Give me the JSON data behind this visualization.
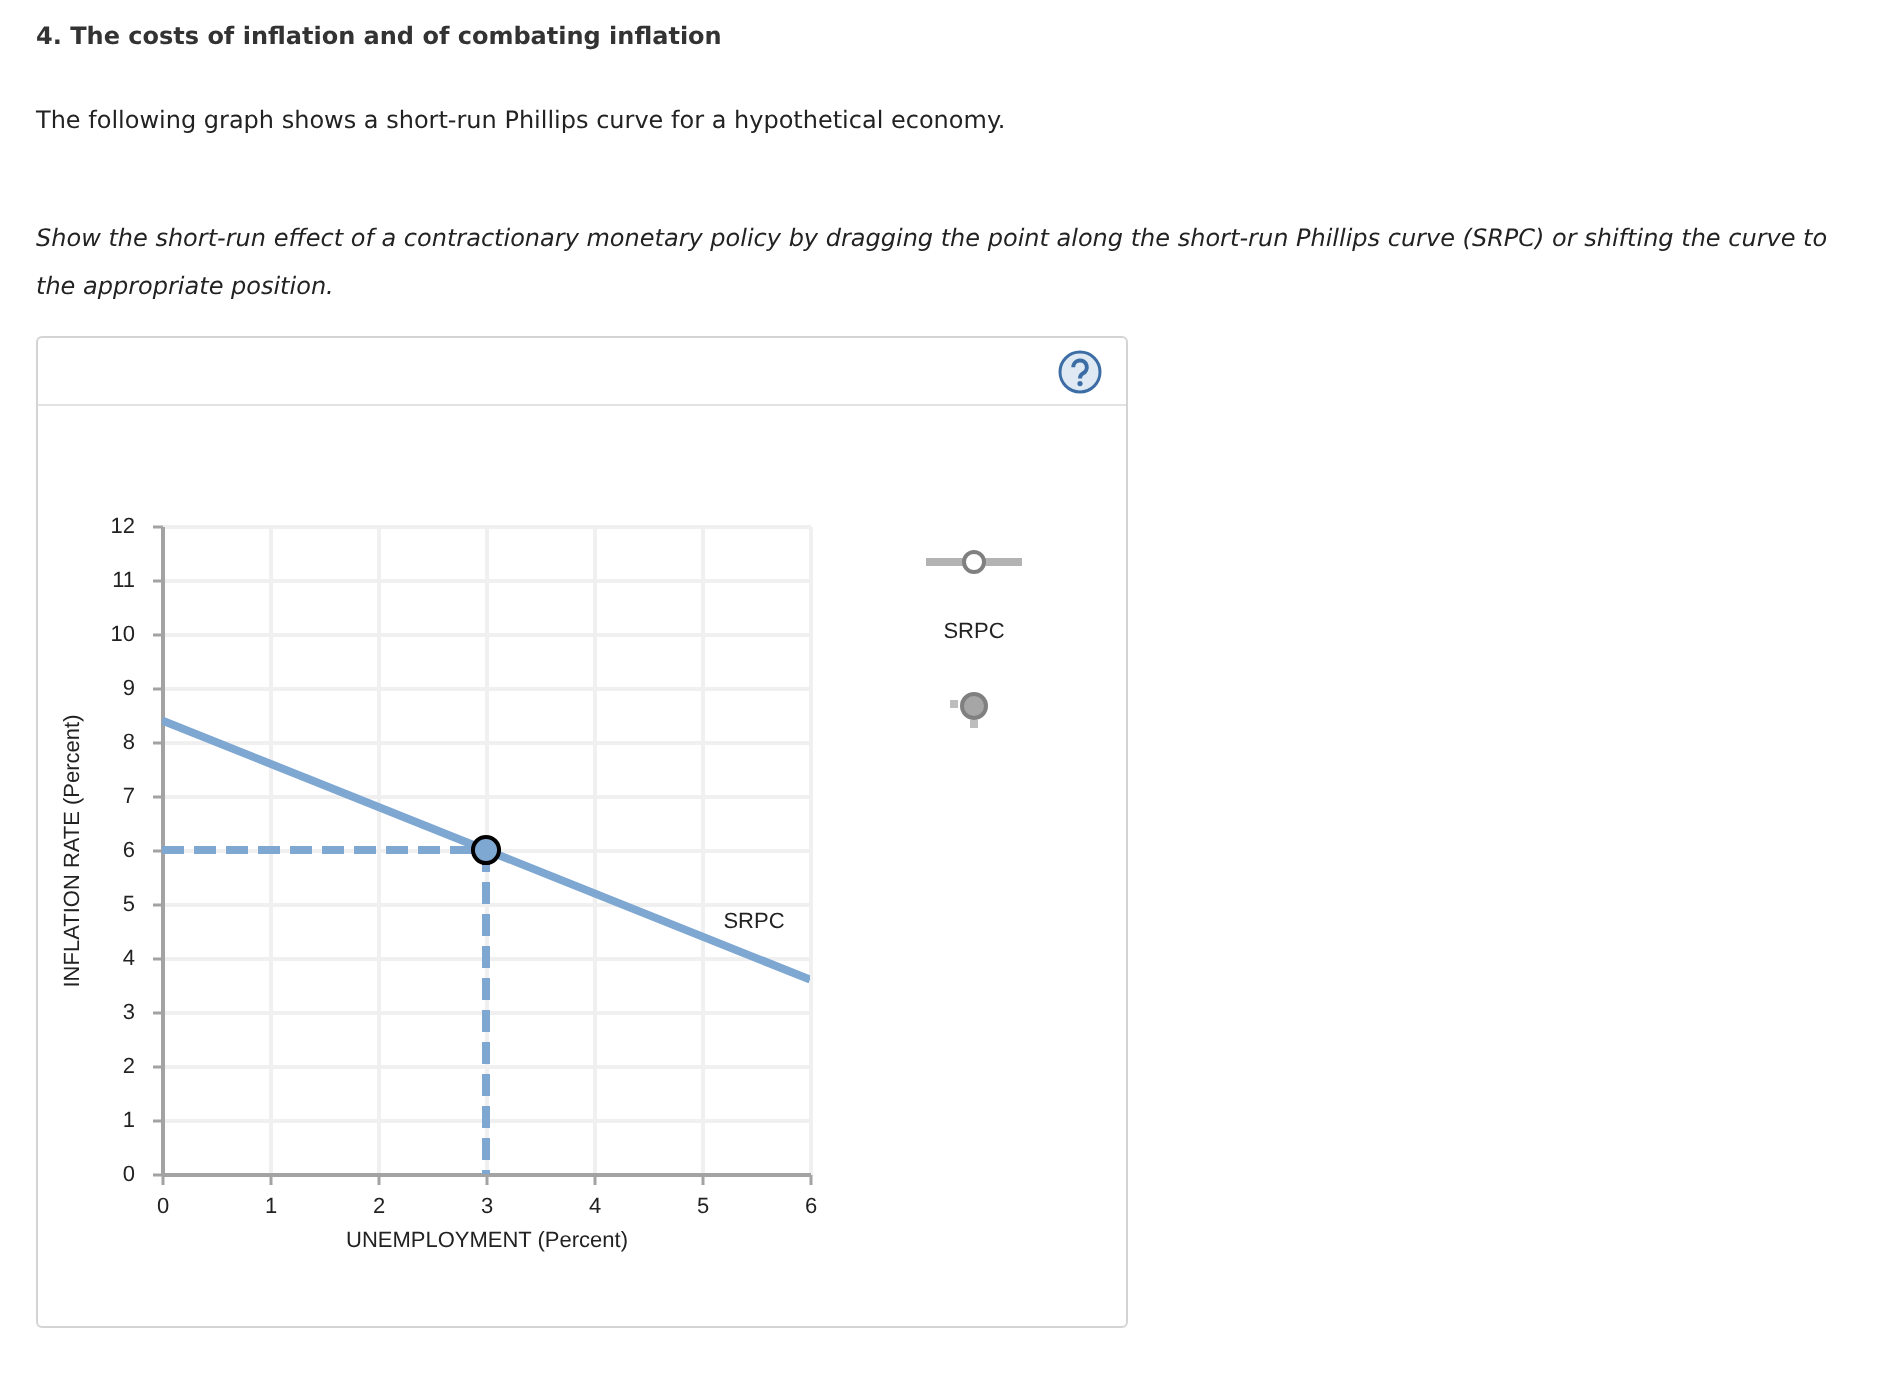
{
  "chart_data": {
    "type": "line",
    "title": "4. The costs of inflation and of combating inflation",
    "subtitle": "The following graph shows a short-run Phillips curve for a hypothetical economy.",
    "xlabel": "UNEMPLOYMENT (Percent)",
    "ylabel": "INFLATION RATE (Percent)",
    "annotations": [
      "Show the short-run effect of a contractionary monetary policy by dragging the point along the short-run Phillips curve (SRPC) or shifting the curve to the appropriate position.",
      "SRPC"
    ],
    "series": [
      {
        "name": "SRPC",
        "color": "#7ea7d2",
        "x": [
          0,
          6
        ],
        "values": [
          8.4,
          3.6
        ]
      },
      {
        "color": "#7ea7d2",
        "x": [
          0,
          3
        ],
        "values": [
          6,
          6
        ],
        "line_style": "dashed"
      },
      {
        "color": "#7ea7d2",
        "x": [
          3,
          3
        ],
        "values": [
          6,
          0
        ],
        "line_style": "dashed"
      },
      {
        "type": "scatter",
        "color": "#7ea7d2",
        "x": [
          3
        ],
        "values": [
          6
        ],
        "marker": "circle"
      }
    ],
    "xlim": [
      0,
      6
    ],
    "xticks": [
      0,
      1,
      2,
      3,
      4,
      5,
      6
    ],
    "ylim": [
      0,
      12
    ],
    "yticks": [
      0,
      1,
      2,
      3,
      4,
      5,
      6,
      7,
      8,
      9,
      10,
      11,
      12
    ],
    "grid": true
  }
}
